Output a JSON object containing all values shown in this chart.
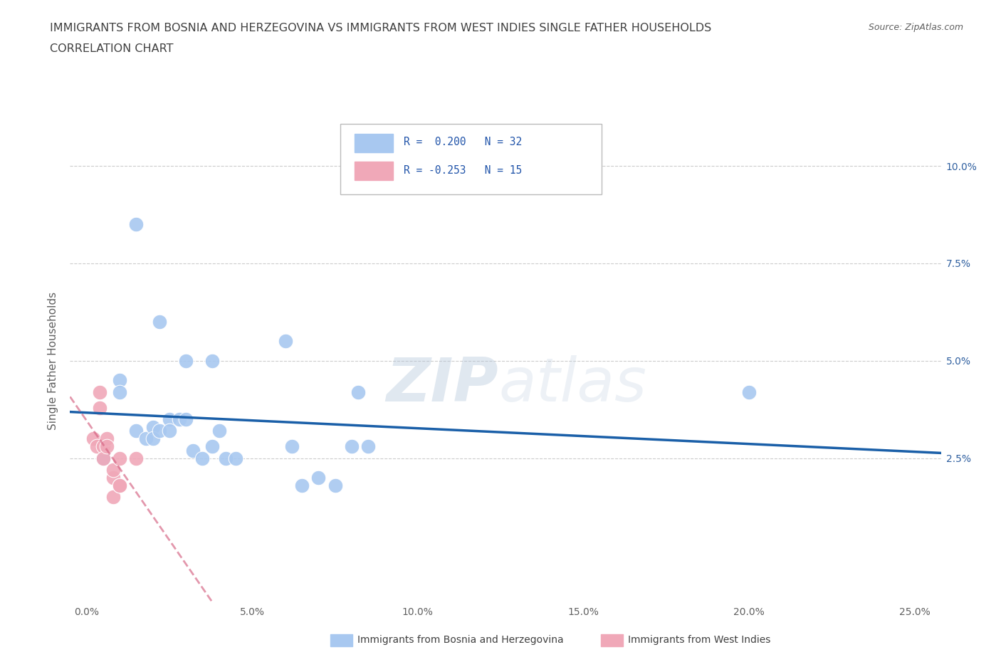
{
  "title_line1": "IMMIGRANTS FROM BOSNIA AND HERZEGOVINA VS IMMIGRANTS FROM WEST INDIES SINGLE FATHER HOUSEHOLDS",
  "title_line2": "CORRELATION CHART",
  "source": "Source: ZipAtlas.com",
  "ylabel": "Single Father Households",
  "legend_entries": [
    {
      "r_label": "R =  0.200",
      "n_label": "N = 32"
    },
    {
      "r_label": "R = -0.253",
      "n_label": "N = 15"
    }
  ],
  "legend_bottom_labels": [
    "Immigrants from Bosnia and Herzegovina",
    "Immigrants from West Indies"
  ],
  "bosnia_x": [
    0.015,
    0.005,
    0.005,
    0.01,
    0.01,
    0.015,
    0.018,
    0.02,
    0.02,
    0.022,
    0.025,
    0.025,
    0.028,
    0.03,
    0.03,
    0.032,
    0.035,
    0.038,
    0.038,
    0.04,
    0.042,
    0.045,
    0.06,
    0.062,
    0.065,
    0.07,
    0.075,
    0.08,
    0.082,
    0.085,
    0.2,
    0.022
  ],
  "bosnia_y": [
    0.085,
    0.025,
    0.028,
    0.045,
    0.042,
    0.032,
    0.03,
    0.033,
    0.03,
    0.032,
    0.035,
    0.032,
    0.035,
    0.035,
    0.05,
    0.027,
    0.025,
    0.028,
    0.05,
    0.032,
    0.025,
    0.025,
    0.055,
    0.028,
    0.018,
    0.02,
    0.018,
    0.028,
    0.042,
    0.028,
    0.042,
    0.06
  ],
  "westindies_x": [
    0.002,
    0.003,
    0.004,
    0.004,
    0.005,
    0.005,
    0.006,
    0.006,
    0.008,
    0.008,
    0.008,
    0.01,
    0.01,
    0.015,
    0.01
  ],
  "westindies_y": [
    0.03,
    0.028,
    0.042,
    0.038,
    0.028,
    0.025,
    0.03,
    0.028,
    0.02,
    0.022,
    0.015,
    0.018,
    0.025,
    0.025,
    0.018
  ],
  "blue_line_color": "#1a5fa8",
  "pink_line_color": "#d46080",
  "blue_dot_color": "#a8c8f0",
  "pink_dot_color": "#f0a8b8",
  "background_color": "#ffffff",
  "title_color": "#404040",
  "axis_color": "#606060",
  "grid_color": "#cccccc",
  "legend_text_color": "#2255aa",
  "source_color": "#606060",
  "bottom_label_color": "#404040",
  "xticks": [
    0.0,
    0.05,
    0.1,
    0.15,
    0.2,
    0.25
  ],
  "yticks": [
    0.025,
    0.05,
    0.075,
    0.1
  ],
  "xlim": [
    -0.005,
    0.258
  ],
  "ylim": [
    -0.012,
    0.112
  ]
}
